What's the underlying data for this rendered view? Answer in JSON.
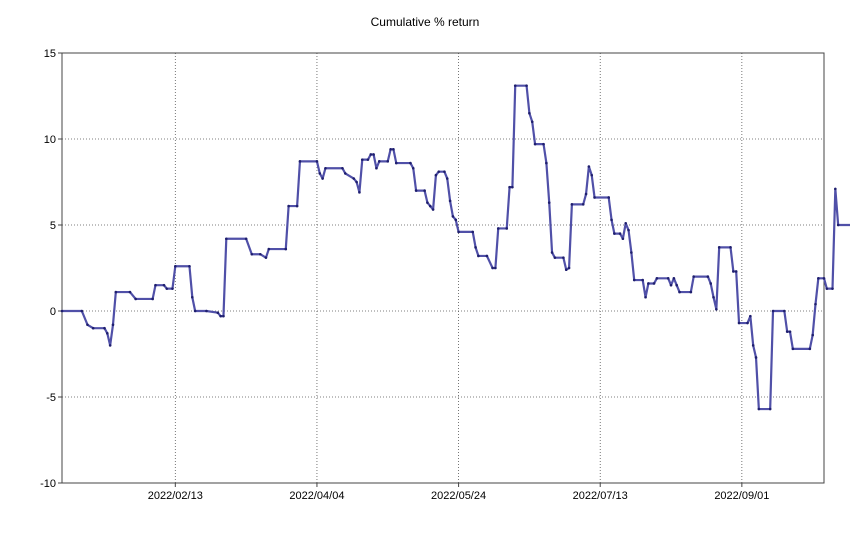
{
  "chart_data": {
    "type": "line",
    "title": "Cumulative % return",
    "xlabel": "",
    "ylabel": "",
    "ylim": [
      -10,
      15
    ],
    "yticks": [
      -10,
      -5,
      0,
      5,
      10,
      15
    ],
    "xlim": [
      "2022-01-04",
      "2022-09-30"
    ],
    "xticks": [
      {
        "date": "2022-02-13",
        "label": "2022/02/13"
      },
      {
        "date": "2022-04-04",
        "label": "2022/04/04"
      },
      {
        "date": "2022-05-24",
        "label": "2022/05/24"
      },
      {
        "date": "2022-07-13",
        "label": "2022/07/13"
      },
      {
        "date": "2022-09-01",
        "label": "2022/09/01"
      }
    ],
    "grid": true,
    "line_color": "#5050a8",
    "series": [
      {
        "name": "",
        "points": [
          [
            "2022-01-04",
            0.0
          ],
          [
            "2022-01-11",
            0.0
          ],
          [
            "2022-01-13",
            -0.8
          ],
          [
            "2022-01-15",
            -1.0
          ],
          [
            "2022-01-19",
            -1.0
          ],
          [
            "2022-01-20",
            -1.3
          ],
          [
            "2022-01-21",
            -2.0
          ],
          [
            "2022-01-22",
            -0.8
          ],
          [
            "2022-01-23",
            1.1
          ],
          [
            "2022-01-28",
            1.1
          ],
          [
            "2022-01-30",
            0.7
          ],
          [
            "2022-02-05",
            0.7
          ],
          [
            "2022-02-06",
            1.5
          ],
          [
            "2022-02-09",
            1.5
          ],
          [
            "2022-02-10",
            1.3
          ],
          [
            "2022-02-12",
            1.3
          ],
          [
            "2022-02-13",
            2.6
          ],
          [
            "2022-02-18",
            2.6
          ],
          [
            "2022-02-19",
            0.8
          ],
          [
            "2022-02-20",
            0.0
          ],
          [
            "2022-02-24",
            0.0
          ],
          [
            "2022-02-28",
            -0.1
          ],
          [
            "2022-03-01",
            -0.3
          ],
          [
            "2022-03-02",
            -0.3
          ],
          [
            "2022-03-03",
            4.2
          ],
          [
            "2022-03-10",
            4.2
          ],
          [
            "2022-03-12",
            3.3
          ],
          [
            "2022-03-15",
            3.3
          ],
          [
            "2022-03-17",
            3.1
          ],
          [
            "2022-03-18",
            3.6
          ],
          [
            "2022-03-24",
            3.6
          ],
          [
            "2022-03-25",
            6.1
          ],
          [
            "2022-03-28",
            6.1
          ],
          [
            "2022-03-29",
            8.7
          ],
          [
            "2022-04-04",
            8.7
          ],
          [
            "2022-04-05",
            8.0
          ],
          [
            "2022-04-06",
            7.7
          ],
          [
            "2022-04-07",
            8.3
          ],
          [
            "2022-04-13",
            8.3
          ],
          [
            "2022-04-14",
            8.0
          ],
          [
            "2022-04-17",
            7.7
          ],
          [
            "2022-04-18",
            7.5
          ],
          [
            "2022-04-19",
            6.9
          ],
          [
            "2022-04-20",
            8.8
          ],
          [
            "2022-04-22",
            8.8
          ],
          [
            "2022-04-23",
            9.1
          ],
          [
            "2022-04-24",
            9.1
          ],
          [
            "2022-04-25",
            8.3
          ],
          [
            "2022-04-26",
            8.7
          ],
          [
            "2022-04-29",
            8.7
          ],
          [
            "2022-04-30",
            9.4
          ],
          [
            "2022-05-01",
            9.4
          ],
          [
            "2022-05-02",
            8.6
          ],
          [
            "2022-05-07",
            8.6
          ],
          [
            "2022-05-08",
            8.3
          ],
          [
            "2022-05-09",
            7.0
          ],
          [
            "2022-05-12",
            7.0
          ],
          [
            "2022-05-13",
            6.3
          ],
          [
            "2022-05-14",
            6.1
          ],
          [
            "2022-05-15",
            5.9
          ],
          [
            "2022-05-16",
            7.9
          ],
          [
            "2022-05-17",
            8.1
          ],
          [
            "2022-05-19",
            8.1
          ],
          [
            "2022-05-20",
            7.7
          ],
          [
            "2022-05-21",
            6.4
          ],
          [
            "2022-05-22",
            5.5
          ],
          [
            "2022-05-23",
            5.3
          ],
          [
            "2022-05-24",
            4.6
          ],
          [
            "2022-05-29",
            4.6
          ],
          [
            "2022-05-30",
            3.7
          ],
          [
            "2022-05-31",
            3.2
          ],
          [
            "2022-06-03",
            3.2
          ],
          [
            "2022-06-05",
            2.5
          ],
          [
            "2022-06-06",
            2.5
          ],
          [
            "2022-06-07",
            4.8
          ],
          [
            "2022-06-10",
            4.8
          ],
          [
            "2022-06-11",
            7.2
          ],
          [
            "2022-06-12",
            7.2
          ],
          [
            "2022-06-13",
            13.1
          ],
          [
            "2022-06-17",
            13.1
          ],
          [
            "2022-06-18",
            11.5
          ],
          [
            "2022-06-19",
            11.0
          ],
          [
            "2022-06-20",
            9.7
          ],
          [
            "2022-06-23",
            9.7
          ],
          [
            "2022-06-24",
            8.6
          ],
          [
            "2022-06-25",
            6.3
          ],
          [
            "2022-06-26",
            3.4
          ],
          [
            "2022-06-27",
            3.1
          ],
          [
            "2022-06-30",
            3.1
          ],
          [
            "2022-07-01",
            2.4
          ],
          [
            "2022-07-02",
            2.5
          ],
          [
            "2022-07-03",
            6.2
          ],
          [
            "2022-07-07",
            6.2
          ],
          [
            "2022-07-08",
            6.8
          ],
          [
            "2022-07-09",
            8.4
          ],
          [
            "2022-07-10",
            7.9
          ],
          [
            "2022-07-11",
            6.6
          ],
          [
            "2022-07-16",
            6.6
          ],
          [
            "2022-07-17",
            5.3
          ],
          [
            "2022-07-18",
            4.5
          ],
          [
            "2022-07-20",
            4.5
          ],
          [
            "2022-07-21",
            4.2
          ],
          [
            "2022-07-22",
            5.1
          ],
          [
            "2022-07-23",
            4.7
          ],
          [
            "2022-07-24",
            3.4
          ],
          [
            "2022-07-25",
            1.8
          ],
          [
            "2022-07-28",
            1.8
          ],
          [
            "2022-07-29",
            0.8
          ],
          [
            "2022-07-30",
            1.6
          ],
          [
            "2022-08-01",
            1.6
          ],
          [
            "2022-08-02",
            1.9
          ],
          [
            "2022-08-06",
            1.9
          ],
          [
            "2022-08-07",
            1.5
          ],
          [
            "2022-08-08",
            1.9
          ],
          [
            "2022-08-09",
            1.5
          ],
          [
            "2022-08-10",
            1.1
          ],
          [
            "2022-08-14",
            1.1
          ],
          [
            "2022-08-15",
            2.0
          ],
          [
            "2022-08-20",
            2.0
          ],
          [
            "2022-08-21",
            1.6
          ],
          [
            "2022-08-22",
            0.8
          ],
          [
            "2022-08-23",
            0.1
          ],
          [
            "2022-08-24",
            3.7
          ],
          [
            "2022-08-28",
            3.7
          ],
          [
            "2022-08-29",
            2.3
          ],
          [
            "2022-08-30",
            2.3
          ],
          [
            "2022-08-31",
            -0.7
          ],
          [
            "2022-09-03",
            -0.7
          ],
          [
            "2022-09-04",
            -0.3
          ],
          [
            "2022-09-05",
            -2.0
          ],
          [
            "2022-09-06",
            -2.7
          ],
          [
            "2022-09-07",
            -5.7
          ],
          [
            "2022-09-11",
            -5.7
          ],
          [
            "2022-09-12",
            0.0
          ],
          [
            "2022-09-16",
            0.0
          ],
          [
            "2022-09-17",
            -1.2
          ],
          [
            "2022-09-18",
            -1.2
          ],
          [
            "2022-09-19",
            -2.2
          ],
          [
            "2022-09-25",
            -2.2
          ],
          [
            "2022-09-26",
            -1.4
          ],
          [
            "2022-09-27",
            0.4
          ],
          [
            "2022-09-28",
            1.9
          ],
          [
            "2022-09-30",
            1.9
          ],
          [
            "2022-10-01",
            1.3
          ],
          [
            "2022-10-03",
            1.3
          ],
          [
            "2022-10-04",
            7.1
          ],
          [
            "2022-10-05",
            5.0
          ],
          [
            "2022-10-10",
            5.0
          ],
          [
            "2022-10-11",
            2.9
          ],
          [
            "2022-10-12",
            1.6
          ]
        ]
      }
    ]
  }
}
